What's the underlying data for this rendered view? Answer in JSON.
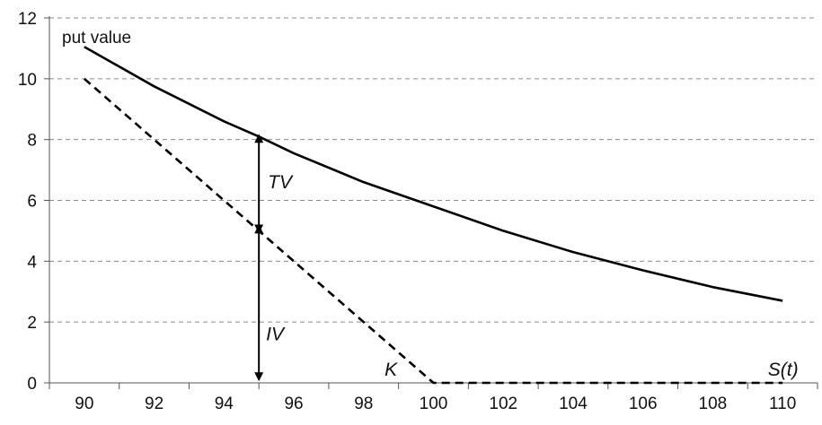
{
  "chart_data": {
    "type": "line",
    "title": "",
    "xlabel": "",
    "ylabel": "",
    "xlim": [
      89,
      111
    ],
    "ylim": [
      0,
      12
    ],
    "x_ticks": [
      90,
      92,
      94,
      96,
      98,
      100,
      102,
      104,
      106,
      108,
      110
    ],
    "y_ticks": [
      0,
      2,
      4,
      6,
      8,
      10,
      12
    ],
    "grid": "horizontal-dashed",
    "legend": "none",
    "series": [
      {
        "style": "solid",
        "color": "#000000",
        "x": [
          90,
          92,
          94,
          95,
          96,
          98,
          100,
          102,
          104,
          106,
          108,
          110
        ],
        "y": [
          11.05,
          9.75,
          8.6,
          8.1,
          7.55,
          6.6,
          5.8,
          5.0,
          4.3,
          3.7,
          3.15,
          2.7
        ]
      },
      {
        "style": "dashed",
        "color": "#000000",
        "x": [
          90,
          100,
          110
        ],
        "y": [
          10,
          0,
          0
        ]
      }
    ],
    "annotations": {
      "put_value_label": "put value",
      "tv_label": "TV",
      "iv_label": "IV",
      "k_label": "K",
      "s_label": "S(t)",
      "arrow_x": 95,
      "tv_range": [
        5.0,
        8.1
      ],
      "iv_range": [
        0.2,
        5.0
      ]
    }
  }
}
